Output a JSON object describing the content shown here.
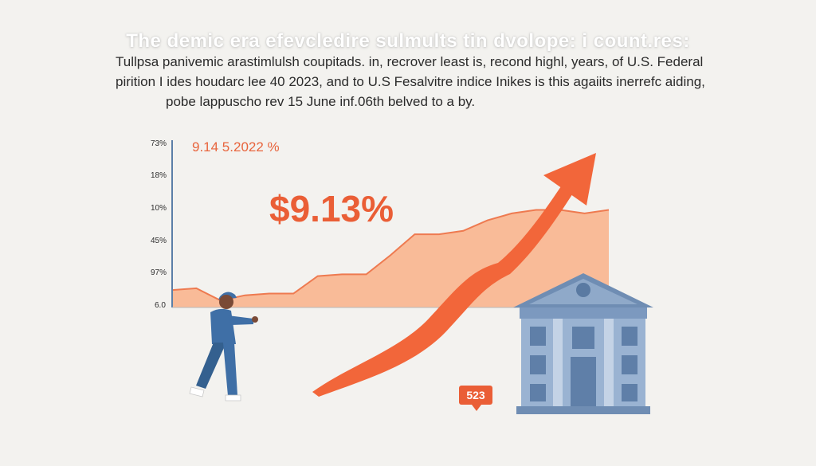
{
  "header": {
    "title": "The demic era efevcledire sulmults tin dvolope: i count.res:",
    "subtitle_lines": [
      "Tullpsa panivemic arastimlulsh coupitads. in, recrover least is, recond highl, years, of U.S. Federal",
      "pirition I ides houdarc lee 40 2023, and to U.S Fesalvitre indice Inikes is this agaiits inerrefc aiding,",
      "pobe lappuscho rev 15 June inf.06th belved to a by."
    ]
  },
  "chart_data": {
    "type": "area",
    "y_tick_labels": [
      "73%",
      "18%",
      "10%",
      "45%",
      "97%",
      "6.0"
    ],
    "y_values_pct": [
      5,
      5.5,
      2,
      3.5,
      4,
      4,
      9,
      9.5,
      9.5,
      15,
      21,
      21,
      22,
      25,
      27,
      28,
      28,
      27,
      28
    ],
    "annotation_small": "9.14 5.2022 %",
    "annotation_big": "$9.13%",
    "badge": "523",
    "colors": {
      "area_fill": "#f9bb98",
      "area_line": "#ee7a50",
      "arrow": "#f2663a",
      "axis": "#5b7fa8",
      "bank": "#8fa9c9",
      "person": "#3f6fa6"
    }
  },
  "illustrations": {
    "person": "walking-person-icon",
    "bank": "bank-building-icon",
    "arrow": "rising-arrow-icon"
  }
}
